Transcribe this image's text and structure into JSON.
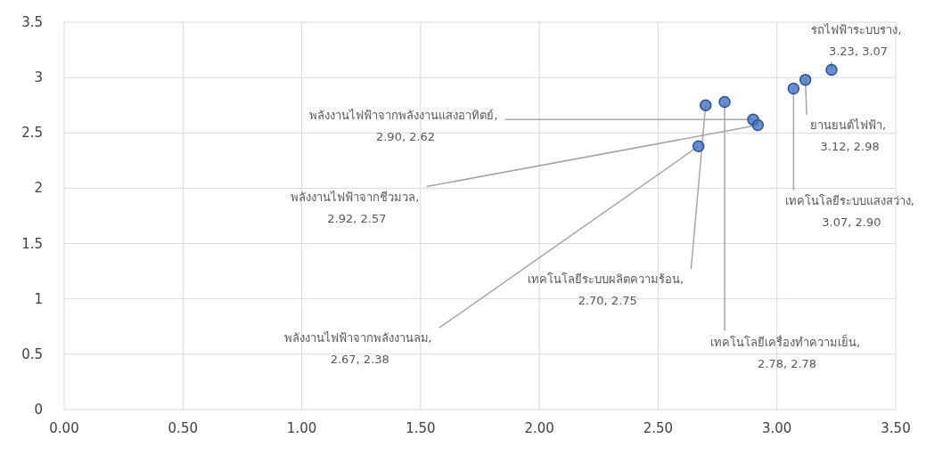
{
  "chart_data": {
    "type": "scatter",
    "marker": "circle",
    "grid": true,
    "x": [
      3.23,
      3.12,
      3.07,
      2.9,
      2.92,
      2.7,
      2.78,
      2.67
    ],
    "series": [
      {
        "color": "#4472c4",
        "values": [
          3.07,
          2.98,
          2.9,
          2.62,
          2.57,
          2.75,
          2.78,
          2.38
        ]
      }
    ],
    "xlim": [
      0,
      3.5
    ],
    "xticks": [
      {
        "value": 0,
        "label": "0.00"
      },
      {
        "value": 0.5,
        "label": "0.50"
      },
      {
        "value": 1,
        "label": "1.00"
      },
      {
        "value": 1.5,
        "label": "1.50"
      },
      {
        "value": 2,
        "label": "2.00"
      },
      {
        "value": 2.5,
        "label": "2.50"
      },
      {
        "value": 3,
        "label": "3.00"
      },
      {
        "value": 3.5,
        "label": "3.50"
      }
    ],
    "ylim": [
      0,
      3.5
    ],
    "yticks": [
      0,
      0.5,
      1,
      1.5,
      2,
      2.5,
      3,
      3.5
    ],
    "annotations": [
      {
        "text": "รถไฟฟ้าระบบราง, 3.23, 3.07",
        "x": 3.23,
        "y": 3.07
      },
      {
        "text": "ยานยนต์ไฟฟ้า, 3.12, 2.98",
        "x": 3.12,
        "y": 2.98
      },
      {
        "text": "เทคโนโลยีระบบแสงสว่าง, 3.07, 2.90",
        "x": 3.07,
        "y": 2.9
      },
      {
        "text": "พลังงานไฟฟ้าจากพลังงานแสงอาทิตย์, 2.90, 2.62",
        "x": 2.9,
        "y": 2.62
      },
      {
        "text": "พลังงานไฟฟ้าจากชีวมวล, 2.92, 2.57",
        "x": 2.92,
        "y": 2.57
      },
      {
        "text": "เทคโนโลยีระบบผลิตความร้อน, 2.70, 2.75",
        "x": 2.7,
        "y": 2.75
      },
      {
        "text": "เทคโนโลยีเครื่องทำความเย็น, 2.78, 2.78",
        "x": 2.78,
        "y": 2.78
      },
      {
        "text": "พลังงานไฟฟ้าจากพลังงานลม, 2.67, 2.38",
        "x": 2.67,
        "y": 2.38
      }
    ]
  }
}
